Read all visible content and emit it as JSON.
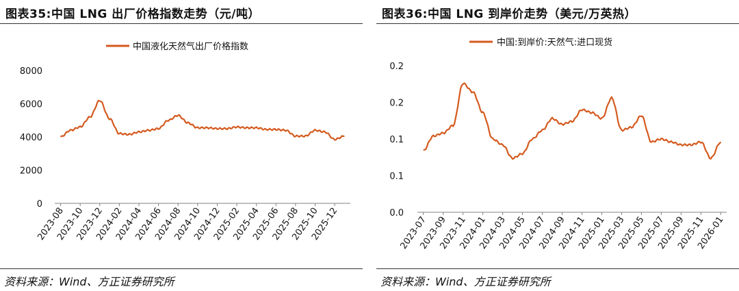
{
  "colors": {
    "series": "#d45a1e",
    "axis": "#808080",
    "text": "#111111"
  },
  "charts": [
    {
      "title": "图表35:中国 LNG 出厂价格指数走势（元/吨）",
      "source": "资料来源：Wind、方正证券研究所",
      "chart_data": {
        "type": "line",
        "series": [
          {
            "name": "中国液化天然气出厂价格指数",
            "x": [
              "2023-08",
              "2023-09",
              "2023-10",
              "2023-11",
              "2023-12",
              "2024-01",
              "2024-02",
              "2024-03",
              "2024-04",
              "2024-05",
              "2024-06",
              "2024-07",
              "2024-08",
              "2024-09",
              "2024-10",
              "2024-11",
              "2024-12",
              "2025-01",
              "2025-02",
              "2025-03",
              "2025-04",
              "2025-05",
              "2025-06",
              "2025-07",
              "2025-08",
              "2025-09",
              "2025-10",
              "2025-11",
              "2025-12",
              "2026-01"
            ],
            "values": [
              4000,
              4400,
              4600,
              5200,
              6200,
              5100,
              4200,
              4150,
              4300,
              4400,
              4500,
              5000,
              5300,
              4850,
              4550,
              4550,
              4500,
              4500,
              4600,
              4550,
              4550,
              4450,
              4450,
              4400,
              4050,
              4050,
              4400,
              4300,
              3850,
              4050
            ]
          }
        ],
        "x_tick_labels": [
          "2023-08",
          "2023-10",
          "2023-12",
          "2024-02",
          "2024-04",
          "2024-06",
          "2024-08",
          "2024-10",
          "2024-12",
          "2025-02",
          "2025-04",
          "2025-06",
          "2025-08",
          "2025-10",
          "2025-12"
        ],
        "y_tick_labels": [
          "8000",
          "6000",
          "4000",
          "2000",
          "0"
        ],
        "ylim": [
          0,
          8000
        ],
        "legend": "top-center"
      }
    },
    {
      "title": "图表36:中国 LNG 到岸价走势（美元/万英热）",
      "source": "资料来源：Wind、方正证券研究所",
      "chart_data": {
        "type": "line",
        "series": [
          {
            "name": "中国:到岸价:天然气:进口现货",
            "x": [
              "2023-07",
              "2023-08",
              "2023-09",
              "2023-10",
              "2023-11",
              "2023-12",
              "2024-01",
              "2024-02",
              "2024-03",
              "2024-04",
              "2024-05",
              "2024-06",
              "2024-07",
              "2024-08",
              "2024-09",
              "2024-10",
              "2024-11",
              "2024-12",
              "2025-01",
              "2025-02",
              "2025-03",
              "2025-04",
              "2025-05",
              "2025-06",
              "2025-07",
              "2025-08",
              "2025-09",
              "2025-10",
              "2025-11",
              "2025-12",
              "2026-01"
            ],
            "values": [
              0.105,
              0.13,
              0.135,
              0.148,
              0.22,
              0.205,
              0.17,
              0.125,
              0.115,
              0.092,
              0.1,
              0.125,
              0.14,
              0.16,
              0.15,
              0.155,
              0.175,
              0.17,
              0.16,
              0.195,
              0.14,
              0.145,
              0.165,
              0.12,
              0.125,
              0.12,
              0.115,
              0.115,
              0.12,
              0.092,
              0.12
            ]
          }
        ],
        "x_tick_labels": [
          "2023-07",
          "2023-09",
          "2023-11",
          "2024-01",
          "2024-03",
          "2024-05",
          "2024-07",
          "2024-09",
          "2024-11",
          "2025-01",
          "2025-03",
          "2025-05",
          "2025-07",
          "2025-09",
          "2025-11",
          "2026-01"
        ],
        "y_tick_labels": [
          "0.2",
          "0.2",
          "0.1",
          "0.1",
          "0.0"
        ],
        "ylim": [
          0,
          0.25
        ],
        "legend": "top-center"
      }
    }
  ]
}
